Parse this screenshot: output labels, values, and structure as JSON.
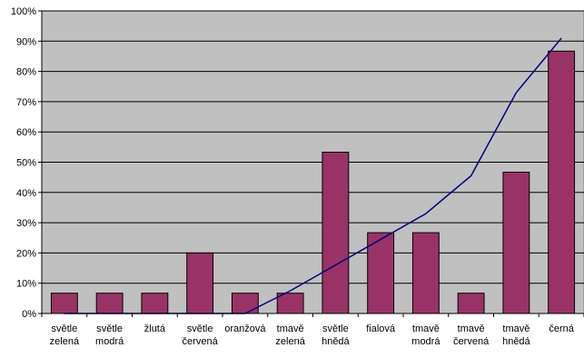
{
  "chart_data": {
    "type": "bar",
    "categories": [
      [
        "světle",
        "zelená"
      ],
      [
        "světle",
        "modrá"
      ],
      [
        "žlutá"
      ],
      [
        "světle",
        "červená"
      ],
      [
        "oranžová"
      ],
      [
        "tmavě",
        "zelená"
      ],
      [
        "světle",
        "hnědá"
      ],
      [
        "fialová"
      ],
      [
        "tmavě",
        "modrá"
      ],
      [
        "tmavě",
        "červená"
      ],
      [
        "tmavě",
        "hnědá"
      ],
      [
        "černá"
      ]
    ],
    "series": [
      {
        "values": [
          6.7,
          6.7,
          6.7,
          20.0,
          6.7,
          6.7,
          53.3,
          26.7,
          26.7,
          6.7,
          46.7,
          86.7
        ],
        "type": "bar"
      },
      {
        "values": [
          0,
          0,
          0,
          0,
          0,
          7.5,
          16,
          24.5,
          33,
          45.5,
          73,
          91
        ],
        "type": "line"
      }
    ],
    "ylim": [
      0,
      100
    ],
    "yticks": [
      "0%",
      "10%",
      "20%",
      "30%",
      "40%",
      "50%",
      "60%",
      "70%",
      "80%",
      "90%",
      "100%"
    ],
    "grid": true,
    "colors": {
      "plot_background": "#c0c0c0",
      "bar_fill": "#993366",
      "bar_stroke": "#000000",
      "line": "#000080",
      "gridline": "#000000"
    }
  }
}
